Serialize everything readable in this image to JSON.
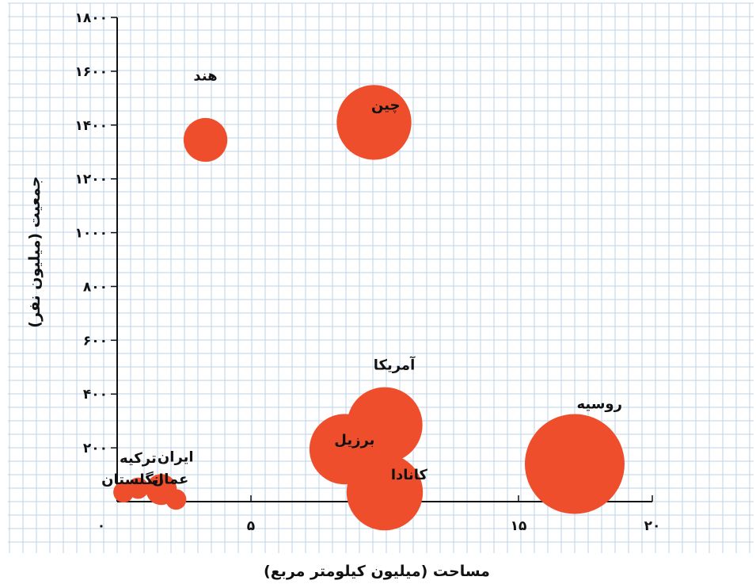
{
  "chart_data": {
    "type": "scatter",
    "title": "",
    "xlabel": "مساحت (میلیون کیلومتر مربع)",
    "ylabel": "جمعیت (میلیون نفر)",
    "xlim": [
      0,
      20
    ],
    "ylim": [
      0,
      1800
    ],
    "grid": true,
    "x_ticks": [
      {
        "value": 0,
        "label": "۰"
      },
      {
        "value": 5,
        "label": "۵"
      },
      {
        "value": 15,
        "label": "۱۵"
      },
      {
        "value": 20,
        "label": "۲۰"
      }
    ],
    "y_ticks": [
      {
        "value": 200,
        "label": "۲۰۰"
      },
      {
        "value": 400,
        "label": "۴۰۰"
      },
      {
        "value": 600,
        "label": "۶۰۰"
      },
      {
        "value": 800,
        "label": "۸۰۰"
      },
      {
        "value": 1000,
        "label": "۱۰۰۰"
      },
      {
        "value": 1200,
        "label": "۱۲۰۰"
      },
      {
        "value": 1400,
        "label": "۱۴۰۰"
      },
      {
        "value": 1600,
        "label": "۱۶۰۰"
      },
      {
        "value": 1800,
        "label": "۱۸۰۰"
      }
    ],
    "points": [
      {
        "label": "هند",
        "x": 3.3,
        "y": 1345,
        "size": 3.3
      },
      {
        "label": "چین",
        "x": 9.6,
        "y": 1410,
        "size": 9.6
      },
      {
        "label": "آمریکا",
        "x": 10.0,
        "y": 285,
        "size": 9.8
      },
      {
        "label": "برزیل",
        "x": 8.5,
        "y": 195,
        "size": 8.5
      },
      {
        "label": "کانادا",
        "x": 10.0,
        "y": 35,
        "size": 10.0
      },
      {
        "label": "روسیه",
        "x": 17.1,
        "y": 140,
        "size": 17.1
      },
      {
        "label": "انگلستان",
        "x": 0.24,
        "y": 35,
        "size": 0.24
      },
      {
        "label": "ترکیه",
        "x": 0.78,
        "y": 50,
        "size": 0.78
      },
      {
        "label": "ایران",
        "x": 1.65,
        "y": 45,
        "size": 1.65
      },
      {
        "label": "عمان",
        "x": 2.2,
        "y": 8,
        "size": 0.31
      }
    ],
    "colors": {
      "bubble": "#ef4e2d",
      "grid": "#bcd3ea",
      "axis": "#111111"
    }
  }
}
